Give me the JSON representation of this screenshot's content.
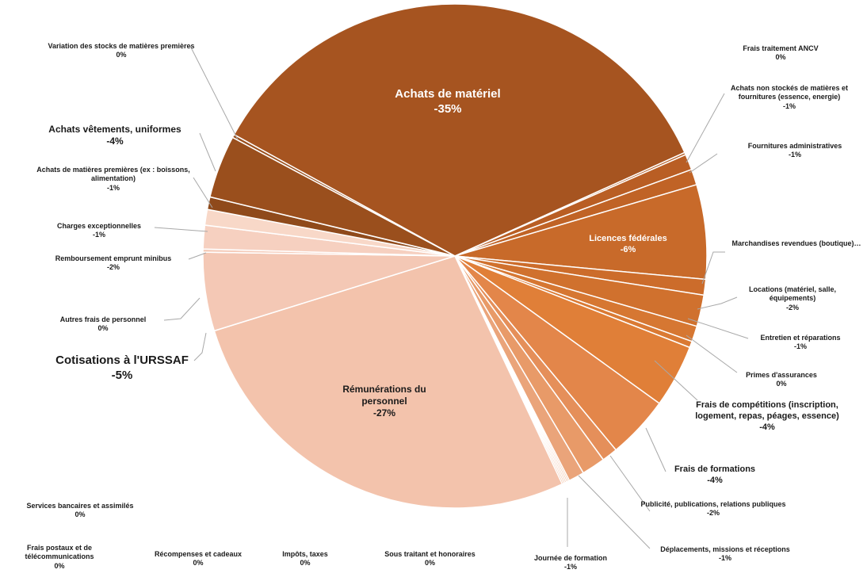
{
  "chart_data": {
    "type": "pie",
    "title": "",
    "slices": [
      {
        "label": "Achats de matériel",
        "pct_label": "-35%",
        "value": 35,
        "color": "#a65420"
      },
      {
        "label": "Frais traitement ANCV",
        "pct_label": "0%",
        "value": 0.15,
        "color": "#b35b22"
      },
      {
        "label": "Achats non stockés de matières et fournitures (essence, energie)",
        "pct_label": "-1%",
        "value": 1,
        "color": "#b95e24"
      },
      {
        "label": "Fournitures administratives",
        "pct_label": "-1%",
        "value": 1,
        "color": "#c06326"
      },
      {
        "label": "Licences fédérales",
        "pct_label": "-6%",
        "value": 6,
        "color": "#c86a2a"
      },
      {
        "label": "Marchandises revendues (boutique)…",
        "pct_label": "",
        "value": 1,
        "color": "#cc6c2b"
      },
      {
        "label": "Locations (matériel, salle, équipements)",
        "pct_label": "-2%",
        "value": 2,
        "color": "#d0712e"
      },
      {
        "label": "Entretien et réparations",
        "pct_label": "-1%",
        "value": 1,
        "color": "#d67732"
      },
      {
        "label": "Primes d'assurances",
        "pct_label": "0%",
        "value": 0.4,
        "color": "#da7a34"
      },
      {
        "label": "Frais de compétitions (inscription, logement, repas, péages, essence)",
        "pct_label": "-4%",
        "value": 4,
        "color": "#e07f38"
      },
      {
        "label": "Frais de formations",
        "pct_label": "-4%",
        "value": 4,
        "color": "#e3864a"
      },
      {
        "label": "Déplacements, missions et réceptions",
        "pct_label": "-1%",
        "value": 1,
        "color": "#e58f5a"
      },
      {
        "label": "Publicité, publications, relations publiques",
        "pct_label": "-2%",
        "value": 1.5,
        "color": "#e89a68"
      },
      {
        "label": "Journée de formation",
        "pct_label": "-1%",
        "value": 1,
        "color": "#eaa47a"
      },
      {
        "label": "Sous traitant et honoraires",
        "pct_label": "0%",
        "value": 0.1,
        "color": "#eaa47a"
      },
      {
        "label": "Impôts, taxes",
        "pct_label": "0%",
        "value": 0.1,
        "color": "#eaa47a"
      },
      {
        "label": "Récompenses et cadeaux",
        "pct_label": "0%",
        "value": 0.1,
        "color": "#eaa47a"
      },
      {
        "label": "Frais postaux et de télécommunications",
        "pct_label": "0%",
        "value": 0.1,
        "color": "#eaa47a"
      },
      {
        "label": "Services bancaires et assimilés",
        "pct_label": "0%",
        "value": 0.1,
        "color": "#eaa47a"
      },
      {
        "label": "Rémunérations du personnel",
        "pct_label": "-27%",
        "value": 27,
        "color": "#f3c3ac"
      },
      {
        "label": "Cotisations à l'URSSAF",
        "pct_label": "-5%",
        "value": 5,
        "color": "#f4c8b5"
      },
      {
        "label": "Autres frais de personnel",
        "pct_label": "0%",
        "value": 0.2,
        "color": "#f5ccba"
      },
      {
        "label": "Remboursement emprunt minibus",
        "pct_label": "-2%",
        "value": 1.5,
        "color": "#f6d0c0"
      },
      {
        "label": "Charges exceptionnelles",
        "pct_label": "-1%",
        "value": 1,
        "color": "#f8d8c8"
      },
      {
        "label": "Achats de matières premières (ex : boissons, alimentation)",
        "pct_label": "-1%",
        "value": 0.8,
        "color": "#8f4a1b"
      },
      {
        "label": "Achats vêtements, uniformes",
        "pct_label": "-4%",
        "value": 4,
        "color": "#9a4f1d"
      },
      {
        "label": "Variation des stocks de matières premières",
        "pct_label": "0%",
        "value": 0.2,
        "color": "#9a4f1d"
      }
    ]
  },
  "labels": {
    "achats_materiel": {
      "name": "Achats de matériel",
      "pct": "-35%"
    },
    "frais_ancv": {
      "name": "Frais traitement ANCV",
      "pct": "0%"
    },
    "achats_non_stockes": {
      "name": "Achats non stockés de matières et fournitures (essence, energie)",
      "pct": "-1%"
    },
    "fournitures_admin": {
      "name": "Fournitures administratives",
      "pct": "-1%"
    },
    "licences": {
      "name": "Licences fédérales",
      "pct": "-6%"
    },
    "marchandises": {
      "name": "Marchandises revendues (boutique)…",
      "pct": ""
    },
    "locations": {
      "name": "Locations (matériel, salle, équipements)",
      "pct": "-2%"
    },
    "entretien": {
      "name": "Entretien et réparations",
      "pct": "-1%"
    },
    "primes": {
      "name": "Primes d'assurances",
      "pct": "0%"
    },
    "competitions": {
      "name": "Frais de compétitions (inscription, logement, repas, péages, essence)",
      "pct": "-4%"
    },
    "formations": {
      "name": "Frais de formations",
      "pct": "-4%"
    },
    "publicite": {
      "name": "Publicité, publications, relations publiques",
      "pct": "-2%"
    },
    "deplacements": {
      "name": "Déplacements, missions et réceptions",
      "pct": "-1%"
    },
    "journee": {
      "name": "Journée de formation",
      "pct": "-1%"
    },
    "sous_traitant": {
      "name": "Sous traitant et honoraires",
      "pct": "0%"
    },
    "impots": {
      "name": "Impôts, taxes",
      "pct": "0%"
    },
    "recompenses": {
      "name": "Récompenses et cadeaux",
      "pct": "0%"
    },
    "frais_postaux": {
      "name": "Frais postaux et de télécommunications",
      "pct": "0%"
    },
    "services_bancaires": {
      "name": "Services bancaires et assimilés",
      "pct": "0%"
    },
    "remunerations": {
      "name": "Rémunérations du personnel",
      "pct": "-27%"
    },
    "cotisations": {
      "name": "Cotisations à l'URSSAF",
      "pct": "-5%"
    },
    "autres_frais": {
      "name": "Autres frais de personnel",
      "pct": "0%"
    },
    "remboursement": {
      "name": "Remboursement emprunt minibus",
      "pct": "-2%"
    },
    "charges_exc": {
      "name": "Charges exceptionnelles",
      "pct": "-1%"
    },
    "matieres_premieres": {
      "name": "Achats de matières premières (ex : boissons, alimentation)",
      "pct": "-1%"
    },
    "vetements": {
      "name": "Achats vêtements, uniformes",
      "pct": "-4%"
    },
    "variation_stocks": {
      "name": "Variation des stocks de matières premières",
      "pct": "0%"
    }
  }
}
